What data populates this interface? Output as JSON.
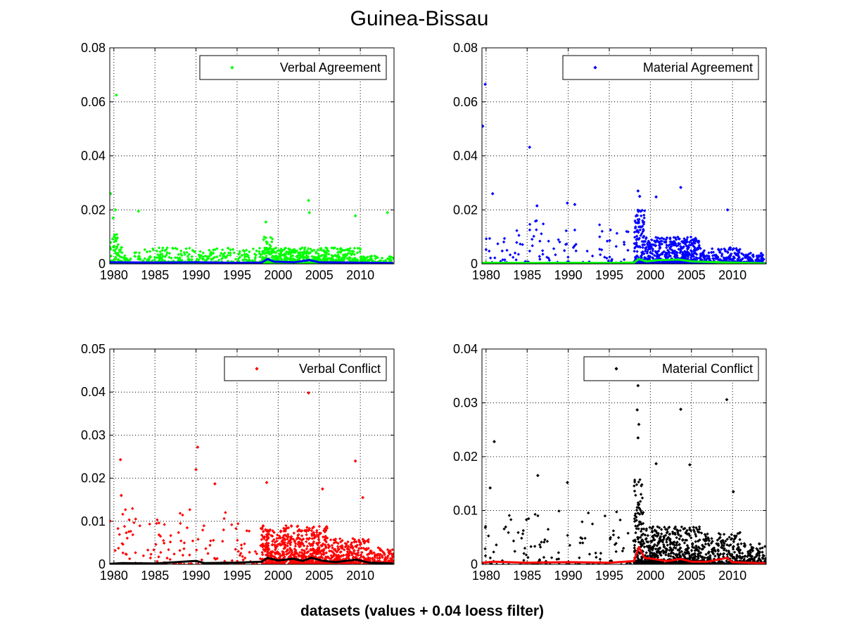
{
  "figure": {
    "title": "Guinea-Bissau",
    "caption": "datasets (values + 0.04 loess filter)"
  },
  "chart_data": [
    {
      "type": "scatter",
      "legend": "Verbal Agreement",
      "legend_position": "top-right",
      "point_color": "#00ff00",
      "smooth_color": "#0000ff",
      "xlim": [
        1979.5,
        2014.1
      ],
      "ylim": [
        0,
        0.08
      ],
      "xticks": [
        "1980",
        "1985",
        "1990",
        "1995",
        "2000",
        "2005",
        "2010"
      ],
      "yticks": [
        "0",
        "0.02",
        "0.04",
        "0.06",
        "0.08"
      ],
      "grid": true,
      "outliers": [
        {
          "x": 1979.6,
          "y": 0.026
        },
        {
          "x": 1980.3,
          "y": 0.0625
        },
        {
          "x": 1980.2,
          "y": 0.02
        },
        {
          "x": 1979.9,
          "y": 0.017
        },
        {
          "x": 1983.0,
          "y": 0.0195
        },
        {
          "x": 1998.5,
          "y": 0.0155
        },
        {
          "x": 2003.7,
          "y": 0.0235
        },
        {
          "x": 2003.8,
          "y": 0.019
        },
        {
          "x": 2009.4,
          "y": 0.0178
        },
        {
          "x": 2013.3,
          "y": 0.019
        }
      ],
      "bursts": [
        {
          "from": 1979.5,
          "to": 1981,
          "max": 0.012,
          "n": 70
        },
        {
          "from": 1981,
          "to": 1998,
          "max": 0.006,
          "n": 420
        },
        {
          "from": 1998,
          "to": 1999.3,
          "max": 0.01,
          "n": 120
        },
        {
          "from": 1999.3,
          "to": 2010,
          "max": 0.006,
          "n": 600
        },
        {
          "from": 2010,
          "to": 2014,
          "max": 0.003,
          "n": 150
        }
      ],
      "smooth": [
        {
          "x": 1979.5,
          "y": 0.0006
        },
        {
          "x": 1985,
          "y": 0.0005
        },
        {
          "x": 1990,
          "y": 0.0006
        },
        {
          "x": 1995,
          "y": 0.0004
        },
        {
          "x": 1998,
          "y": 0.0005
        },
        {
          "x": 1998.7,
          "y": 0.0018
        },
        {
          "x": 1999.5,
          "y": 0.0008
        },
        {
          "x": 2002,
          "y": 0.0006
        },
        {
          "x": 2003.8,
          "y": 0.0014
        },
        {
          "x": 2005,
          "y": 0.0006
        },
        {
          "x": 2009,
          "y": 0.0005
        },
        {
          "x": 2014,
          "y": 0.0003
        }
      ]
    },
    {
      "type": "scatter",
      "legend": "Material Agreement",
      "legend_position": "top-right",
      "point_color": "#0000ff",
      "smooth_color": "#00ff00",
      "xlim": [
        1979.5,
        2014.1
      ],
      "ylim": [
        0,
        0.08
      ],
      "xticks": [
        "1980",
        "1985",
        "1990",
        "1995",
        "2000",
        "2005",
        "2010"
      ],
      "yticks": [
        "0",
        "0.02",
        "0.04",
        "0.06",
        "0.08"
      ],
      "grid": true,
      "outliers": [
        {
          "x": 1979.6,
          "y": 0.051
        },
        {
          "x": 1979.9,
          "y": 0.0665
        },
        {
          "x": 1985.3,
          "y": 0.0432
        },
        {
          "x": 1980.8,
          "y": 0.026
        },
        {
          "x": 1986.2,
          "y": 0.0215
        },
        {
          "x": 1989.9,
          "y": 0.0225
        },
        {
          "x": 1990.8,
          "y": 0.022
        },
        {
          "x": 1998.5,
          "y": 0.027
        },
        {
          "x": 1998.7,
          "y": 0.025
        },
        {
          "x": 2000.7,
          "y": 0.0248
        },
        {
          "x": 2003.7,
          "y": 0.0283
        },
        {
          "x": 2009.4,
          "y": 0.02
        }
      ],
      "bursts": [
        {
          "from": 1979.5,
          "to": 1998,
          "max": 0.016,
          "n": 120
        },
        {
          "from": 1998,
          "to": 1999.3,
          "max": 0.02,
          "n": 160
        },
        {
          "from": 1999.3,
          "to": 2006,
          "max": 0.01,
          "n": 550
        },
        {
          "from": 2006,
          "to": 2011,
          "max": 0.006,
          "n": 250
        },
        {
          "from": 2011,
          "to": 2014,
          "max": 0.004,
          "n": 120
        }
      ],
      "smooth": [
        {
          "x": 1979.5,
          "y": 0.0004
        },
        {
          "x": 1985,
          "y": 0.0003
        },
        {
          "x": 1990,
          "y": 0.0004
        },
        {
          "x": 1995,
          "y": 0.0003
        },
        {
          "x": 1998,
          "y": 0.0005
        },
        {
          "x": 1998.6,
          "y": 0.0018
        },
        {
          "x": 1999.5,
          "y": 0.0009
        },
        {
          "x": 2001,
          "y": 0.0014
        },
        {
          "x": 2003.5,
          "y": 0.0016
        },
        {
          "x": 2005,
          "y": 0.0009
        },
        {
          "x": 2008,
          "y": 0.0006
        },
        {
          "x": 2011,
          "y": 0.0004
        },
        {
          "x": 2014,
          "y": 0.0002
        }
      ]
    },
    {
      "type": "scatter",
      "legend": "Verbal Conflict",
      "legend_position": "top-right",
      "point_color": "#ff0000",
      "smooth_color": "#000000",
      "xlim": [
        1979.5,
        2014.1
      ],
      "ylim": [
        0,
        0.05
      ],
      "xticks": [
        "1980",
        "1985",
        "1990",
        "1995",
        "2000",
        "2005",
        "2010"
      ],
      "yticks": [
        "0",
        "0.01",
        "0.02",
        "0.03",
        "0.04",
        "0.05"
      ],
      "grid": true,
      "outliers": [
        {
          "x": 1980.8,
          "y": 0.0243
        },
        {
          "x": 1980.9,
          "y": 0.016
        },
        {
          "x": 1990.2,
          "y": 0.0272
        },
        {
          "x": 1990.0,
          "y": 0.022
        },
        {
          "x": 1992.3,
          "y": 0.0187
        },
        {
          "x": 1998.6,
          "y": 0.019
        },
        {
          "x": 2003.7,
          "y": 0.0398
        },
        {
          "x": 2005.4,
          "y": 0.0175
        },
        {
          "x": 2009.4,
          "y": 0.024
        },
        {
          "x": 2010.3,
          "y": 0.0155
        }
      ],
      "bursts": [
        {
          "from": 1979.5,
          "to": 1998,
          "max": 0.013,
          "n": 160
        },
        {
          "from": 1998,
          "to": 2006,
          "max": 0.009,
          "n": 750
        },
        {
          "from": 2006,
          "to": 2011,
          "max": 0.006,
          "n": 300
        },
        {
          "from": 2011,
          "to": 2014,
          "max": 0.004,
          "n": 150
        }
      ],
      "smooth": [
        {
          "x": 1979.5,
          "y": 0.0001
        },
        {
          "x": 1981,
          "y": 0.0003
        },
        {
          "x": 1985,
          "y": 0.0002
        },
        {
          "x": 1990,
          "y": 0.0008
        },
        {
          "x": 1991,
          "y": 0.0003
        },
        {
          "x": 1995,
          "y": 0.0004
        },
        {
          "x": 1998,
          "y": 0.0006
        },
        {
          "x": 1998.7,
          "y": 0.0015
        },
        {
          "x": 2000,
          "y": 0.0009
        },
        {
          "x": 2001.8,
          "y": 0.0013
        },
        {
          "x": 2003,
          "y": 0.0008
        },
        {
          "x": 2004,
          "y": 0.0015
        },
        {
          "x": 2005.5,
          "y": 0.0008
        },
        {
          "x": 2007,
          "y": 0.0005
        },
        {
          "x": 2009.5,
          "y": 0.0011
        },
        {
          "x": 2011,
          "y": 0.0004
        },
        {
          "x": 2014,
          "y": 0.0002
        }
      ]
    },
    {
      "type": "scatter",
      "legend": "Material Conflict",
      "legend_position": "top-right",
      "point_color": "#000000",
      "smooth_color": "#ff0000",
      "xlim": [
        1979.5,
        2014.1
      ],
      "ylim": [
        0,
        0.04
      ],
      "xticks": [
        "1980",
        "1985",
        "1990",
        "1995",
        "2000",
        "2005",
        "2010"
      ],
      "yticks": [
        "0",
        "0.01",
        "0.02",
        "0.03",
        "0.04"
      ],
      "grid": true,
      "outliers": [
        {
          "x": 1981.0,
          "y": 0.0228
        },
        {
          "x": 1980.5,
          "y": 0.0142
        },
        {
          "x": 1986.3,
          "y": 0.0165
        },
        {
          "x": 1989.9,
          "y": 0.0152
        },
        {
          "x": 1998.5,
          "y": 0.0332
        },
        {
          "x": 1998.4,
          "y": 0.0287
        },
        {
          "x": 1998.6,
          "y": 0.026
        },
        {
          "x": 1998.5,
          "y": 0.0235
        },
        {
          "x": 2000.7,
          "y": 0.0187
        },
        {
          "x": 2003.7,
          "y": 0.0288
        },
        {
          "x": 2004.8,
          "y": 0.0185
        },
        {
          "x": 2009.3,
          "y": 0.0306
        },
        {
          "x": 2010.1,
          "y": 0.0135
        }
      ],
      "bursts": [
        {
          "from": 1979.5,
          "to": 1998,
          "max": 0.01,
          "n": 120
        },
        {
          "from": 1998,
          "to": 1999.2,
          "max": 0.016,
          "n": 140
        },
        {
          "from": 1999.2,
          "to": 2006,
          "max": 0.007,
          "n": 600
        },
        {
          "from": 2006,
          "to": 2011,
          "max": 0.006,
          "n": 280
        },
        {
          "from": 2011,
          "to": 2014,
          "max": 0.004,
          "n": 130
        }
      ],
      "smooth": [
        {
          "x": 1979.5,
          "y": 0.0003
        },
        {
          "x": 1981,
          "y": 0.0005
        },
        {
          "x": 1985,
          "y": 0.0003
        },
        {
          "x": 1990,
          "y": 0.0004
        },
        {
          "x": 1995,
          "y": 0.0003
        },
        {
          "x": 1998,
          "y": 0.0006
        },
        {
          "x": 1998.6,
          "y": 0.0032
        },
        {
          "x": 1999.3,
          "y": 0.0012
        },
        {
          "x": 2000.8,
          "y": 0.0009
        },
        {
          "x": 2002,
          "y": 0.0006
        },
        {
          "x": 2003.7,
          "y": 0.001
        },
        {
          "x": 2005,
          "y": 0.0005
        },
        {
          "x": 2007,
          "y": 0.0005
        },
        {
          "x": 2009.3,
          "y": 0.0012
        },
        {
          "x": 2010,
          "y": 0.0004
        },
        {
          "x": 2014,
          "y": 0.0002
        }
      ]
    }
  ]
}
